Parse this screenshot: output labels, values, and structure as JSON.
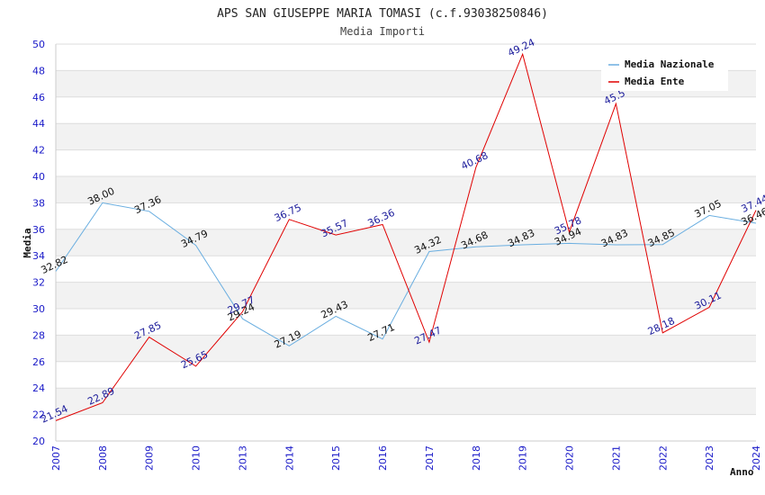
{
  "chart_data": {
    "type": "line",
    "title": "APS SAN GIUSEPPE MARIA TOMASI (c.f.93038250846)",
    "subtitle": "Media Importi",
    "xlabel": "Anno",
    "ylabel": "Media",
    "ylim": [
      20,
      50
    ],
    "ytick_step": 2,
    "grid": true,
    "legend_position": "top-right",
    "categories": [
      "2007",
      "2008",
      "2009",
      "2010",
      "2013",
      "2014",
      "2015",
      "2016",
      "2017",
      "2018",
      "2019",
      "2020",
      "2021",
      "2022",
      "2023",
      "2024"
    ],
    "series": [
      {
        "name": "Media Nazionale",
        "color": "#6aaee0",
        "label_color": "#111111",
        "values": [
          32.82,
          38.0,
          37.36,
          34.79,
          29.24,
          27.19,
          29.43,
          27.71,
          34.32,
          34.68,
          34.83,
          34.94,
          34.83,
          34.85,
          37.05,
          36.46
        ],
        "labels": [
          "32.82",
          "38.00",
          "37.36",
          "34.79",
          "29.24",
          "27.19",
          "29.43",
          "27.71",
          "34.32",
          "34.68",
          "34.83",
          "34.94",
          "34.83",
          "34.85",
          "37.05",
          "36.46"
        ]
      },
      {
        "name": "Media Ente",
        "color": "#e00000",
        "label_color": "#1a1a9a",
        "values": [
          21.54,
          22.89,
          27.85,
          25.65,
          29.77,
          36.75,
          35.57,
          36.36,
          27.47,
          40.68,
          49.24,
          35.78,
          45.5,
          28.18,
          30.11,
          37.44
        ],
        "labels": [
          "21.54",
          "22.89",
          "27.85",
          "25.65",
          "29.77",
          "36.75",
          "35.57",
          "36.36",
          "27.47",
          "40.68",
          "49.24",
          "35.78",
          "45.5",
          "28.18",
          "30.11",
          "37.44"
        ]
      }
    ]
  }
}
